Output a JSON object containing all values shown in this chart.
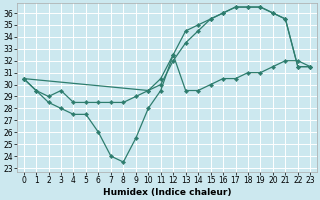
{
  "xlabel": "Humidex (Indice chaleur)",
  "background_color": "#cce8ef",
  "grid_color": "#ffffff",
  "line_color": "#2e7d6e",
  "xmin": -0.5,
  "xmax": 23.5,
  "ymin": 23,
  "ymax": 36.5,
  "yticks": [
    23,
    24,
    25,
    26,
    27,
    28,
    29,
    30,
    31,
    32,
    33,
    34,
    35,
    36
  ],
  "xticks": [
    0,
    1,
    2,
    3,
    4,
    5,
    6,
    7,
    8,
    9,
    10,
    11,
    12,
    13,
    14,
    15,
    16,
    17,
    18,
    19,
    20,
    21,
    22,
    23
  ],
  "line1_x": [
    0,
    1,
    2,
    3,
    4,
    5,
    6,
    7,
    8,
    9,
    10,
    11,
    12,
    13,
    14,
    15,
    16,
    17,
    18,
    19,
    20,
    21,
    22,
    23
  ],
  "line1_y": [
    30.5,
    29.5,
    29.0,
    29.5,
    28.5,
    28.5,
    28.5,
    28.5,
    28.5,
    29.0,
    29.5,
    30.0,
    32.0,
    33.5,
    34.5,
    35.5,
    36.0,
    36.5,
    36.5,
    36.5,
    36.0,
    35.5,
    31.5,
    31.5
  ],
  "line2_x": [
    0,
    10,
    11,
    12,
    13,
    14,
    15,
    16,
    17,
    18,
    19,
    20,
    21,
    22,
    23
  ],
  "line2_y": [
    30.5,
    29.5,
    30.5,
    32.5,
    34.5,
    35.0,
    35.5,
    36.0,
    36.5,
    36.5,
    36.5,
    36.0,
    35.5,
    31.5,
    31.5
  ],
  "line3_x": [
    0,
    1,
    2,
    3,
    4,
    5,
    6,
    7,
    8,
    9,
    10,
    11,
    12,
    13,
    14,
    15,
    16,
    17,
    18,
    19,
    20,
    21,
    22,
    23
  ],
  "line3_y": [
    30.5,
    29.5,
    28.5,
    28.0,
    27.5,
    27.5,
    26.0,
    24.0,
    23.5,
    25.5,
    28.0,
    29.5,
    32.5,
    29.5,
    29.5,
    30.0,
    30.5,
    30.5,
    31.0,
    31.0,
    31.5,
    32.0,
    32.0,
    31.5
  ],
  "tick_fontsize": 5.5,
  "xlabel_fontsize": 6.5
}
